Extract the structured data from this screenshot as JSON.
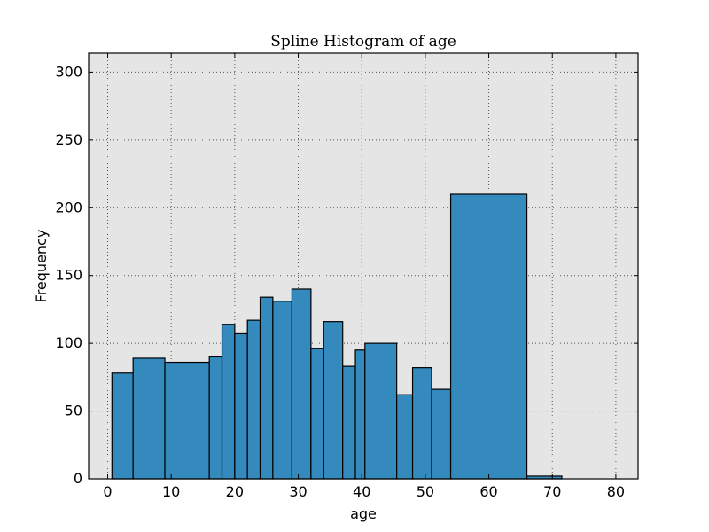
{
  "chart_data": {
    "type": "bar",
    "title": "Spline Histogram of age",
    "xlabel": "age",
    "ylabel": "Frequency",
    "xlim": [
      -3,
      83.5
    ],
    "ylim": [
      0,
      314
    ],
    "xticks": [
      0,
      10,
      20,
      30,
      40,
      50,
      60,
      70,
      80
    ],
    "yticks": [
      0,
      50,
      100,
      150,
      200,
      250,
      300
    ],
    "grid": true,
    "bins": [
      {
        "x0": 0.67,
        "x1": 4.0,
        "value": 78
      },
      {
        "x0": 4.0,
        "x1": 9.0,
        "value": 89
      },
      {
        "x0": 9.0,
        "x1": 16.0,
        "value": 86
      },
      {
        "x0": 16.0,
        "x1": 18.0,
        "value": 90
      },
      {
        "x0": 18.0,
        "x1": 20.0,
        "value": 114
      },
      {
        "x0": 20.0,
        "x1": 22.0,
        "value": 107
      },
      {
        "x0": 22.0,
        "x1": 24.0,
        "value": 117
      },
      {
        "x0": 24.0,
        "x1": 26.0,
        "value": 134
      },
      {
        "x0": 26.0,
        "x1": 29.0,
        "value": 131
      },
      {
        "x0": 29.0,
        "x1": 32.0,
        "value": 140
      },
      {
        "x0": 32.0,
        "x1": 34.0,
        "value": 96
      },
      {
        "x0": 34.0,
        "x1": 37.0,
        "value": 116
      },
      {
        "x0": 37.0,
        "x1": 39.0,
        "value": 83
      },
      {
        "x0": 39.0,
        "x1": 40.5,
        "value": 95
      },
      {
        "x0": 40.5,
        "x1": 45.5,
        "value": 100
      },
      {
        "x0": 45.5,
        "x1": 48.0,
        "value": 62
      },
      {
        "x0": 48.0,
        "x1": 51.0,
        "value": 82
      },
      {
        "x0": 51.0,
        "x1": 54.0,
        "value": 66
      },
      {
        "x0": 54.0,
        "x1": 66.0,
        "value": 210
      },
      {
        "x0": 66.0,
        "x1": 71.5,
        "value": 2
      }
    ],
    "colors": {
      "bar_fill": "#348ABD",
      "bar_edge": "#000000",
      "plot_background": "#E5E5E5",
      "grid": "#555555"
    }
  }
}
